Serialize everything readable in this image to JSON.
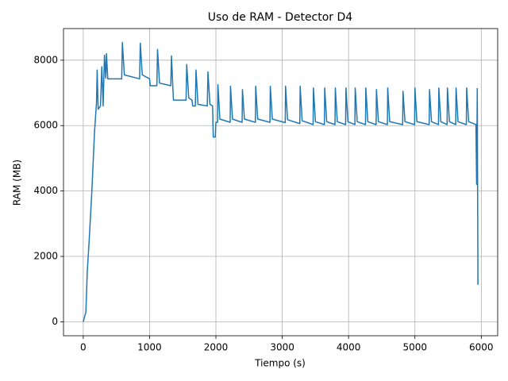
{
  "chart_data": {
    "type": "line",
    "title": "Uso de RAM - Detector D4",
    "xlabel": "Tiempo (s)",
    "ylabel": "RAM (MB)",
    "color": "#1f77b4",
    "grid": true,
    "x": [
      0,
      40,
      60,
      90,
      130,
      170,
      200,
      210,
      225,
      260,
      280,
      300,
      320,
      340,
      350,
      370,
      580,
      590,
      620,
      850,
      860,
      890,
      1000,
      1010,
      1110,
      1120,
      1150,
      1320,
      1330,
      1350,
      1360,
      1550,
      1560,
      1590,
      1640,
      1650,
      1690,
      1700,
      1730,
      1870,
      1880,
      1910,
      1950,
      1960,
      1990,
      2000,
      2025,
      2030,
      2060,
      2215,
      2220,
      2250,
      2395,
      2400,
      2430,
      2595,
      2600,
      2630,
      2815,
      2820,
      2850,
      3045,
      3050,
      3080,
      3265,
      3270,
      3300,
      3465,
      3470,
      3500,
      3635,
      3640,
      3670,
      3795,
      3800,
      3830,
      3955,
      3960,
      3990,
      4095,
      4100,
      4130,
      4255,
      4260,
      4290,
      4415,
      4420,
      4450,
      4585,
      4590,
      4620,
      4815,
      4820,
      4850,
      4995,
      5000,
      5030,
      5215,
      5220,
      5250,
      5355,
      5360,
      5390,
      5485,
      5490,
      5520,
      5615,
      5620,
      5650,
      5775,
      5780,
      5810,
      5920,
      5930,
      5940,
      5950
    ],
    "values": [
      0,
      300,
      1500,
      2500,
      4000,
      5800,
      6700,
      7700,
      6500,
      6600,
      7800,
      6600,
      8150,
      7450,
      8200,
      7430,
      7430,
      8540,
      7550,
      7430,
      8520,
      7550,
      7430,
      7220,
      7220,
      8330,
      7300,
      7220,
      8130,
      7220,
      6780,
      6780,
      7870,
      6850,
      6780,
      6600,
      6600,
      7700,
      6650,
      6600,
      7640,
      6650,
      6600,
      5650,
      5650,
      6100,
      6100,
      7250,
      6200,
      6100,
      7200,
      6200,
      6100,
      7100,
      6200,
      6100,
      7200,
      6200,
      6100,
      7200,
      6200,
      6090,
      7200,
      6180,
      6060,
      7200,
      6150,
      6030,
      7150,
      6120,
      6030,
      7150,
      6120,
      6030,
      7150,
      6120,
      6030,
      7150,
      6120,
      6030,
      7150,
      6120,
      6030,
      7150,
      6120,
      6030,
      7100,
      6120,
      6030,
      7150,
      6120,
      6030,
      7050,
      6120,
      6030,
      7150,
      6120,
      6030,
      7100,
      6120,
      6030,
      7150,
      6120,
      6030,
      7150,
      6120,
      6030,
      7150,
      6120,
      6030,
      7150,
      6120,
      6030,
      4200,
      7130,
      1130
    ],
    "xlim": [
      -297.5,
      6247.5
    ],
    "xticks": [
      0,
      1000,
      2000,
      3000,
      4000,
      5000,
      6000
    ],
    "ylim": [
      -427,
      8967
    ],
    "yticks": [
      0,
      2000,
      4000,
      6000,
      8000
    ]
  }
}
